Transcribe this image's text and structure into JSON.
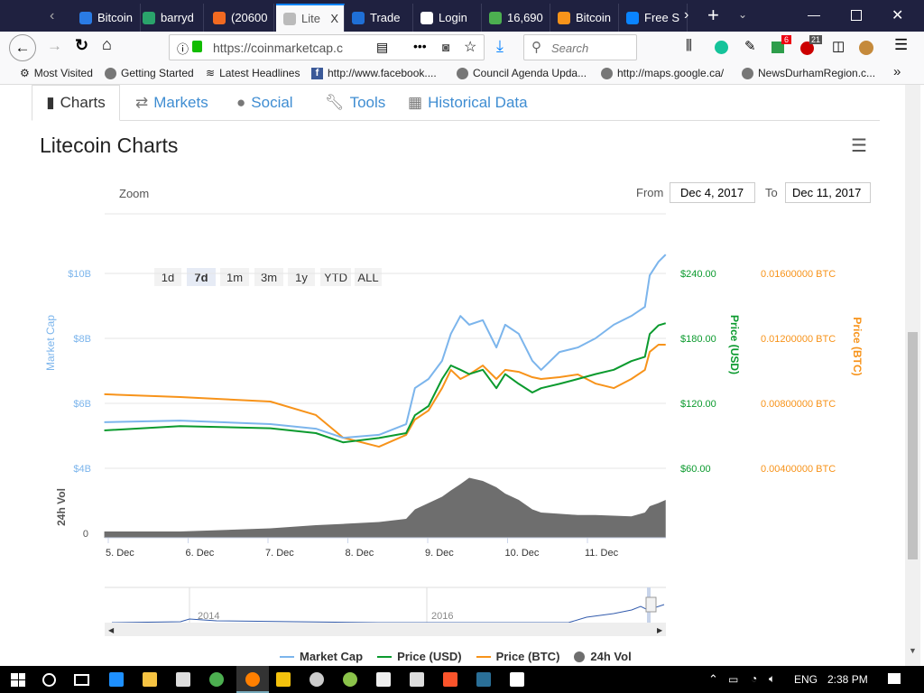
{
  "browser": {
    "tabs": [
      {
        "label": "Bitcoin",
        "color": "#2a7be4"
      },
      {
        "label": "barryd",
        "color": "#2aa36b"
      },
      {
        "label": "(20600",
        "color": "#f26a21"
      },
      {
        "label": "Lite",
        "color": "#bbbbbb",
        "active": true
      },
      {
        "label": "Trade",
        "color": "#1f6fd6"
      },
      {
        "label": "Login",
        "color": "#ffffff"
      },
      {
        "label": "16,690",
        "color": "#4caf50"
      },
      {
        "label": "Bitcoin",
        "color": "#f7931a"
      },
      {
        "label": "Free S",
        "color": "#0a84ff"
      }
    ],
    "close_tab": "X",
    "url": "https://coinmarketcap.c",
    "search_placeholder": "Search",
    "badges": {
      "gmail": "6",
      "adblock": "21"
    },
    "bookmarks": [
      "Most Visited",
      "Getting Started",
      "Latest Headlines",
      "http://www.facebook....",
      "Council Agenda Upda...",
      "http://maps.google.ca/",
      "NewsDurhamRegion.c..."
    ]
  },
  "page": {
    "tabs": [
      "Charts",
      "Markets",
      "Social",
      "Tools",
      "Historical Data"
    ],
    "title": "Litecoin Charts",
    "zoom_label": "Zoom",
    "zoom_options": [
      "1d",
      "7d",
      "1m",
      "3m",
      "1y",
      "YTD",
      "ALL"
    ],
    "zoom_selected": "7d",
    "from_label": "From",
    "from_value": "Dec 4, 2017",
    "to_label": "To",
    "to_value": "Dec 11, 2017",
    "navigator_labels": [
      "2014",
      "2016"
    ],
    "legend": [
      "Market Cap",
      "Price (USD)",
      "Price (BTC)",
      "24h Vol"
    ]
  },
  "chart_data": {
    "type": "line",
    "x_unit": "day of December 2017",
    "x_ticks": [
      "5. Dec",
      "6. Dec",
      "7. Dec",
      "8. Dec",
      "9. Dec",
      "10. Dec",
      "11. Dec"
    ],
    "x": [
      4.95,
      5.9,
      7.03,
      7.6,
      7.94,
      8.39,
      8.73,
      8.84,
      9.01,
      9.18,
      9.29,
      9.41,
      9.52,
      9.69,
      9.86,
      9.97,
      10.14,
      10.31,
      10.42,
      10.65,
      10.88,
      11.1,
      11.33,
      11.55,
      11.72,
      11.78,
      11.89,
      11.98
    ],
    "axes": {
      "market_cap": {
        "label": "Market Cap",
        "ticks": [
          "$4B",
          "$6B",
          "$8B",
          "$10B"
        ],
        "range": [
          4,
          10
        ],
        "color": "#7cb5ec"
      },
      "usd": {
        "label": "Price (USD)",
        "ticks": [
          "$60.00",
          "$120.00",
          "$180.00",
          "$240.00"
        ],
        "range": [
          60,
          240
        ],
        "color": "#0b9a2e"
      },
      "btc": {
        "label": "Price (BTC)",
        "ticks": [
          "0.00400000 BTC",
          "0.00800000 BTC",
          "0.01200000 BTC",
          "0.01600000 BTC"
        ],
        "range": [
          0.004,
          0.016
        ],
        "color": "#f7931a"
      },
      "volume": {
        "label": "24h Vol",
        "ticks": [
          "0"
        ],
        "color": "#6e6e6e"
      }
    },
    "series": [
      {
        "name": "Market Cap",
        "unit": "B USD",
        "values": [
          5.42,
          5.47,
          5.36,
          5.22,
          4.94,
          5.03,
          5.36,
          6.47,
          6.75,
          7.31,
          8.14,
          8.69,
          8.42,
          8.56,
          7.72,
          8.42,
          8.14,
          7.31,
          7.03,
          7.58,
          7.72,
          8.0,
          8.42,
          8.69,
          8.97,
          9.94,
          10.36,
          10.58
        ]
      },
      {
        "name": "Price (USD)",
        "values": [
          95,
          99,
          97,
          92.5,
          84,
          88,
          92.5,
          109,
          117.5,
          142.5,
          155,
          151,
          147,
          151,
          134,
          147,
          138,
          130,
          134,
          138,
          142.5,
          147,
          151,
          159,
          163,
          184,
          192,
          194
        ]
      },
      {
        "name": "Price (BTC)",
        "values": [
          0.00856,
          0.00839,
          0.00811,
          0.00728,
          0.00589,
          0.00533,
          0.00606,
          0.007,
          0.00756,
          0.00894,
          0.01006,
          0.0095,
          0.00978,
          0.01033,
          0.0095,
          0.01006,
          0.00994,
          0.00961,
          0.0095,
          0.00961,
          0.00978,
          0.00922,
          0.00894,
          0.0095,
          0.01006,
          0.01117,
          0.01161,
          0.01161
        ]
      },
      {
        "name": "24h Vol",
        "values": [
          0.1,
          0.1,
          0.15,
          0.2,
          0.22,
          0.25,
          0.3,
          0.45,
          0.55,
          0.65,
          0.75,
          0.85,
          0.95,
          0.9,
          0.8,
          0.7,
          0.6,
          0.45,
          0.4,
          0.38,
          0.36,
          0.36,
          0.35,
          0.34,
          0.4,
          0.5,
          0.55,
          0.6
        ]
      }
    ]
  },
  "taskbar": {
    "language": "ENG",
    "time": "2:38 PM"
  }
}
